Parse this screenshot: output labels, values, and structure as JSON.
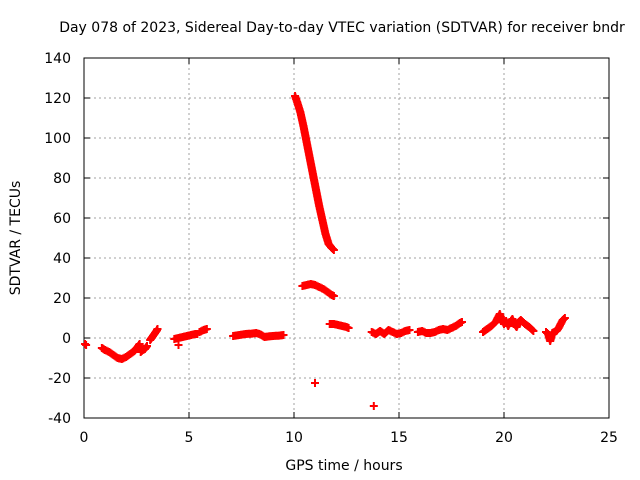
{
  "chart_data": {
    "type": "scatter",
    "title": "Day 078 of 2023, Sidereal Day-to-day VTEC variation (SDTVAR) for receiver bndr",
    "xlabel": "GPS time / hours",
    "ylabel": "SDTVAR / TECUs",
    "xlim": [
      0,
      25
    ],
    "ylim": [
      -40,
      140
    ],
    "xticks": [
      0,
      5,
      10,
      15,
      20,
      25
    ],
    "yticks": [
      -40,
      -20,
      0,
      20,
      40,
      60,
      80,
      100,
      120,
      140
    ],
    "grid": true,
    "marker": "plus",
    "color": "#ff0000",
    "series": [
      {
        "name": "SDTVAR",
        "segments": [
          [
            [
              0.05,
              -3
            ],
            [
              0.1,
              -3.5
            ]
          ],
          [
            [
              0.85,
              -5
            ],
            [
              1.0,
              -6
            ],
            [
              1.2,
              -7
            ],
            [
              1.4,
              -8.5
            ],
            [
              1.6,
              -10
            ],
            [
              1.8,
              -10.5
            ],
            [
              2.0,
              -9.5
            ],
            [
              2.2,
              -8
            ],
            [
              2.4,
              -6.5
            ],
            [
              2.55,
              -4.5
            ],
            [
              2.65,
              -3
            ]
          ],
          [
            [
              2.7,
              -7
            ],
            [
              2.8,
              -6
            ],
            [
              2.9,
              -5.5
            ],
            [
              3.0,
              -4
            ]
          ],
          [
            [
              3.15,
              -1
            ],
            [
              3.25,
              0.5
            ],
            [
              3.35,
              2
            ],
            [
              3.45,
              3.5
            ],
            [
              3.5,
              4.5
            ]
          ],
          [
            [
              4.3,
              -0.5
            ],
            [
              4.5,
              0
            ],
            [
              4.7,
              0.5
            ],
            [
              4.9,
              1
            ],
            [
              5.1,
              1.5
            ],
            [
              5.3,
              2
            ],
            [
              5.4,
              2
            ]
          ],
          [
            [
              4.5,
              -3.5
            ]
          ],
          [
            [
              5.5,
              3
            ],
            [
              5.7,
              4
            ],
            [
              5.85,
              4.5
            ]
          ],
          [
            [
              7.1,
              1
            ],
            [
              7.4,
              1.5
            ],
            [
              7.7,
              2
            ],
            [
              8.0,
              2.2
            ],
            [
              8.2,
              2.5
            ],
            [
              8.4,
              1.8
            ],
            [
              8.6,
              0.5
            ],
            [
              8.8,
              0.8
            ],
            [
              9.0,
              1
            ],
            [
              9.3,
              1.2
            ],
            [
              9.5,
              1.5
            ]
          ],
          [
            [
              10.05,
              121
            ],
            [
              10.15,
              118
            ],
            [
              10.3,
              113
            ],
            [
              10.45,
              106
            ],
            [
              10.6,
              98
            ],
            [
              10.75,
              90
            ],
            [
              10.9,
              82
            ],
            [
              11.05,
              74
            ],
            [
              11.2,
              66
            ],
            [
              11.35,
              59
            ],
            [
              11.5,
              52
            ],
            [
              11.65,
              47
            ],
            [
              11.8,
              45
            ],
            [
              11.9,
              44
            ]
          ],
          [
            [
              10.4,
              26
            ],
            [
              10.6,
              26.5
            ],
            [
              10.8,
              27
            ],
            [
              11.0,
              26.5
            ],
            [
              11.2,
              25.5
            ],
            [
              11.4,
              24.5
            ],
            [
              11.6,
              23
            ],
            [
              11.8,
              21.5
            ],
            [
              11.9,
              21
            ]
          ],
          [
            [
              11.0,
              -22.5
            ]
          ],
          [
            [
              11.7,
              7
            ],
            [
              11.9,
              7
            ],
            [
              12.1,
              6.5
            ],
            [
              12.3,
              6
            ],
            [
              12.5,
              5.5
            ],
            [
              12.6,
              5
            ]
          ],
          [
            [
              13.8,
              -34
            ]
          ],
          [
            [
              13.7,
              3
            ],
            [
              13.9,
              2
            ],
            [
              14.1,
              3.5
            ],
            [
              14.3,
              2
            ],
            [
              14.5,
              4
            ],
            [
              14.7,
              3
            ],
            [
              14.9,
              2
            ],
            [
              15.1,
              2.5
            ],
            [
              15.3,
              3.5
            ],
            [
              15.5,
              4
            ]
          ],
          [
            [
              15.9,
              3
            ],
            [
              16.1,
              3.5
            ],
            [
              16.3,
              2.5
            ],
            [
              16.5,
              2.5
            ],
            [
              16.7,
              3
            ],
            [
              16.9,
              4
            ],
            [
              17.1,
              4.5
            ],
            [
              17.3,
              4
            ],
            [
              17.5,
              5
            ],
            [
              17.7,
              6
            ],
            [
              17.9,
              7.5
            ],
            [
              18.0,
              8
            ]
          ],
          [
            [
              19.0,
              3
            ],
            [
              19.2,
              4.5
            ],
            [
              19.4,
              6
            ],
            [
              19.6,
              8
            ],
            [
              19.7,
              10
            ],
            [
              19.8,
              12
            ],
            [
              19.9,
              9
            ],
            [
              20.0,
              7
            ],
            [
              20.1,
              8.5
            ],
            [
              20.2,
              6
            ],
            [
              20.3,
              8
            ],
            [
              20.4,
              9.5
            ],
            [
              20.5,
              7
            ],
            [
              20.6,
              5.5
            ],
            [
              20.7,
              8
            ],
            [
              20.8,
              9
            ],
            [
              21.0,
              7
            ],
            [
              21.2,
              5.5
            ],
            [
              21.4,
              3.5
            ]
          ],
          [
            [
              22.0,
              3
            ],
            [
              22.1,
              2
            ],
            [
              22.2,
              -1.5
            ],
            [
              22.3,
              2.5
            ],
            [
              22.4,
              3
            ],
            [
              22.5,
              3.5
            ],
            [
              22.6,
              5
            ],
            [
              22.7,
              7
            ],
            [
              22.8,
              9
            ],
            [
              22.9,
              10
            ]
          ]
        ]
      }
    ]
  }
}
